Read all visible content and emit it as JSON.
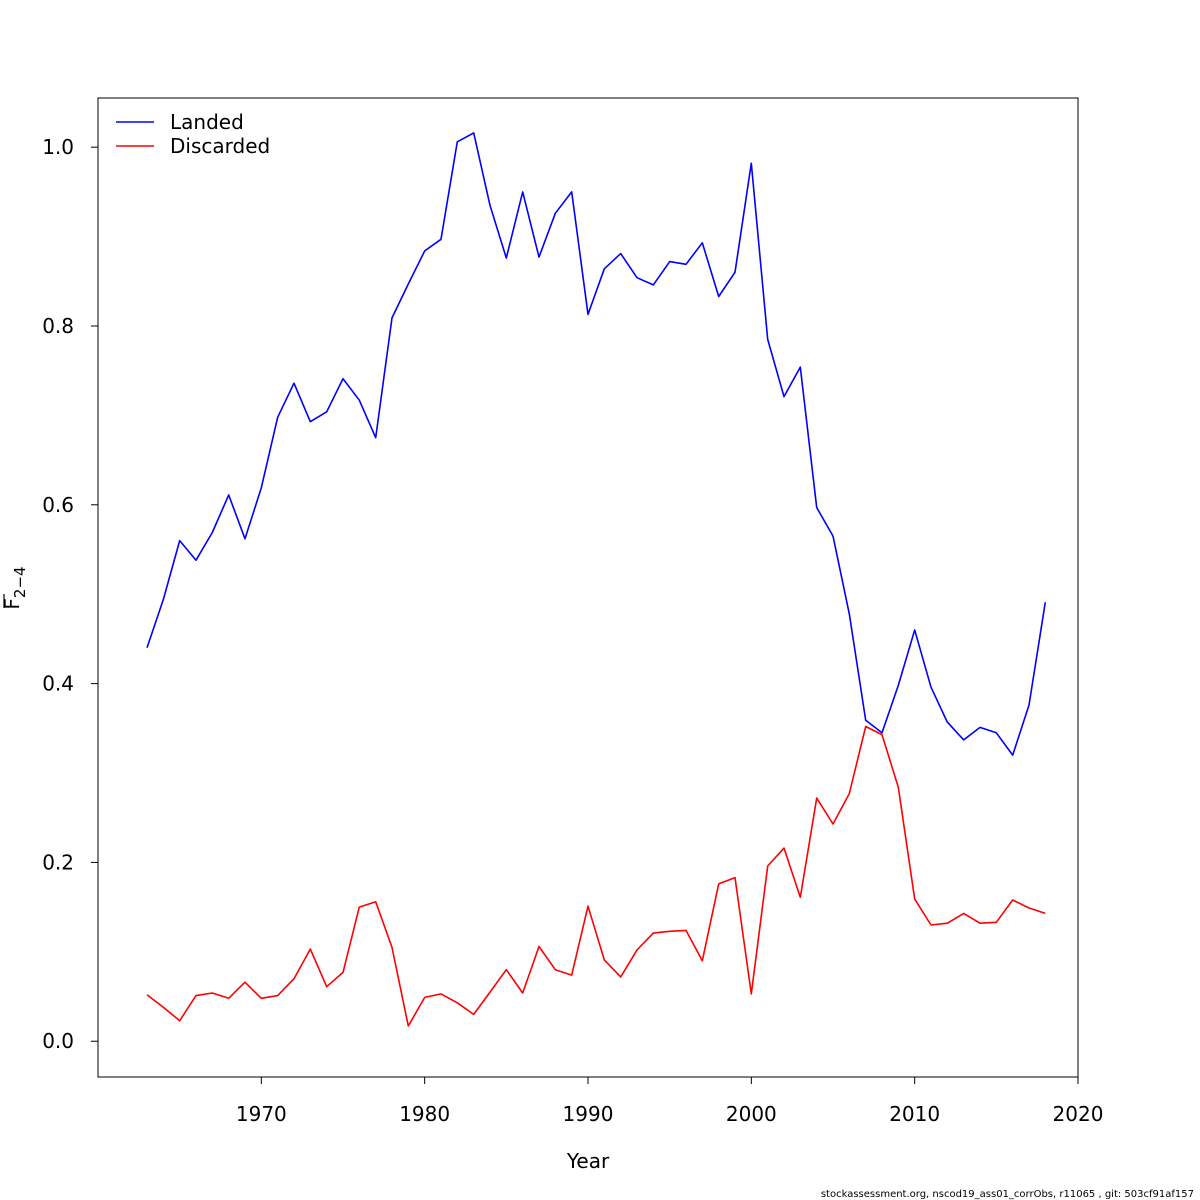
{
  "chart_data": {
    "type": "line",
    "xlabel": "Year",
    "ylabel": "F",
    "ylabel_subscript": "2−4",
    "xlim": [
      1960,
      2020
    ],
    "ylim": [
      -0.04,
      1.055
    ],
    "xticks": [
      1970,
      1980,
      1990,
      2000,
      2010,
      2020
    ],
    "xtick_labels": [
      "1970",
      "1980",
      "1990",
      "2000",
      "2010",
      "2020"
    ],
    "yticks": [
      0.0,
      0.2,
      0.4,
      0.6,
      0.8,
      1.0
    ],
    "ytick_labels": [
      "0.0",
      "0.2",
      "0.4",
      "0.6",
      "0.8",
      "1.0"
    ],
    "legend_position": "top-left",
    "grid": false,
    "x": [
      1963,
      1964,
      1965,
      1966,
      1967,
      1968,
      1969,
      1970,
      1971,
      1972,
      1973,
      1974,
      1975,
      1976,
      1977,
      1978,
      1979,
      1980,
      1981,
      1982,
      1983,
      1984,
      1985,
      1986,
      1987,
      1988,
      1989,
      1990,
      1991,
      1992,
      1993,
      1994,
      1995,
      1996,
      1997,
      1998,
      1999,
      2000,
      2001,
      2002,
      2003,
      2004,
      2005,
      2006,
      2007,
      2008,
      2009,
      2010,
      2011,
      2012,
      2013,
      2014,
      2015,
      2016,
      2017,
      2018
    ],
    "series": [
      {
        "name": "Landed",
        "color": "#0000ff",
        "values": [
          0.44,
          0.494,
          0.56,
          0.538,
          0.569,
          0.611,
          0.562,
          0.619,
          0.698,
          0.736,
          0.693,
          0.704,
          0.741,
          0.717,
          0.675,
          0.809,
          0.847,
          0.884,
          0.897,
          1.006,
          1.016,
          0.935,
          0.876,
          0.95,
          0.877,
          0.926,
          0.95,
          0.813,
          0.864,
          0.881,
          0.854,
          0.846,
          0.872,
          0.869,
          0.893,
          0.833,
          0.86,
          0.982,
          0.785,
          0.721,
          0.754,
          0.597,
          0.565,
          0.478,
          0.359,
          0.345,
          0.398,
          0.46,
          0.396,
          0.357,
          0.337,
          0.351,
          0.345,
          0.32,
          0.376,
          0.491
        ]
      },
      {
        "name": "Discarded",
        "color": "#ff0000",
        "values": [
          0.052,
          0.038,
          0.023,
          0.051,
          0.054,
          0.048,
          0.066,
          0.048,
          0.051,
          0.07,
          0.103,
          0.061,
          0.077,
          0.15,
          0.156,
          0.105,
          0.017,
          0.049,
          0.053,
          0.043,
          0.03,
          0.055,
          0.08,
          0.054,
          0.106,
          0.08,
          0.074,
          0.151,
          0.091,
          0.072,
          0.102,
          0.121,
          0.123,
          0.124,
          0.09,
          0.176,
          0.183,
          0.053,
          0.196,
          0.216,
          0.161,
          0.272,
          0.243,
          0.277,
          0.352,
          0.343,
          0.284,
          0.159,
          0.13,
          0.132,
          0.143,
          0.132,
          0.133,
          0.158,
          0.149,
          0.143
        ]
      }
    ]
  },
  "footer_text": "stockassessment.org, nscod19_ass01_corrObs, r11065 , git: 503cf91af157"
}
